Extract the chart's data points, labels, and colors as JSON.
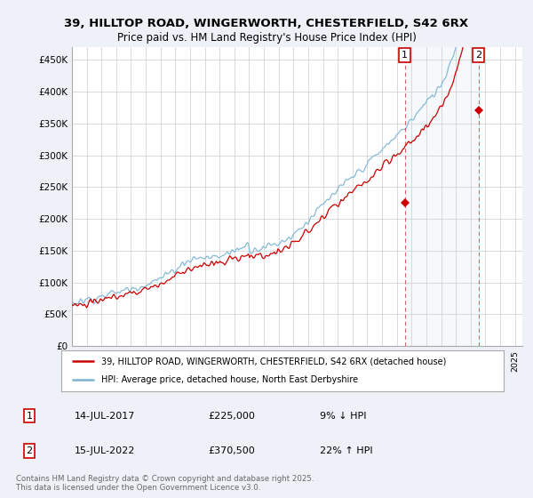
{
  "title_line1": "39, HILLTOP ROAD, WINGERWORTH, CHESTERFIELD, S42 6RX",
  "title_line2": "Price paid vs. HM Land Registry's House Price Index (HPI)",
  "ylim": [
    0,
    470000
  ],
  "yticks": [
    0,
    50000,
    100000,
    150000,
    200000,
    250000,
    300000,
    350000,
    400000,
    450000
  ],
  "ytick_labels": [
    "£0",
    "£50K",
    "£100K",
    "£150K",
    "£200K",
    "£250K",
    "£300K",
    "£350K",
    "£400K",
    "£450K"
  ],
  "hpi_color": "#7ab3d4",
  "price_color": "#cc0000",
  "marker_color": "#cc0000",
  "sale1_x": 2017.54,
  "sale1_price": 225000,
  "sale2_x": 2022.54,
  "sale2_price": 370500,
  "legend_line1": "39, HILLTOP ROAD, WINGERWORTH, CHESTERFIELD, S42 6RX (detached house)",
  "legend_line2": "HPI: Average price, detached house, North East Derbyshire",
  "footnote": "Contains HM Land Registry data © Crown copyright and database right 2025.\nThis data is licensed under the Open Government Licence v3.0.",
  "background_color": "#eef2f8",
  "plot_bg_color": "#ffffff",
  "shade_color": "#dde8f5"
}
